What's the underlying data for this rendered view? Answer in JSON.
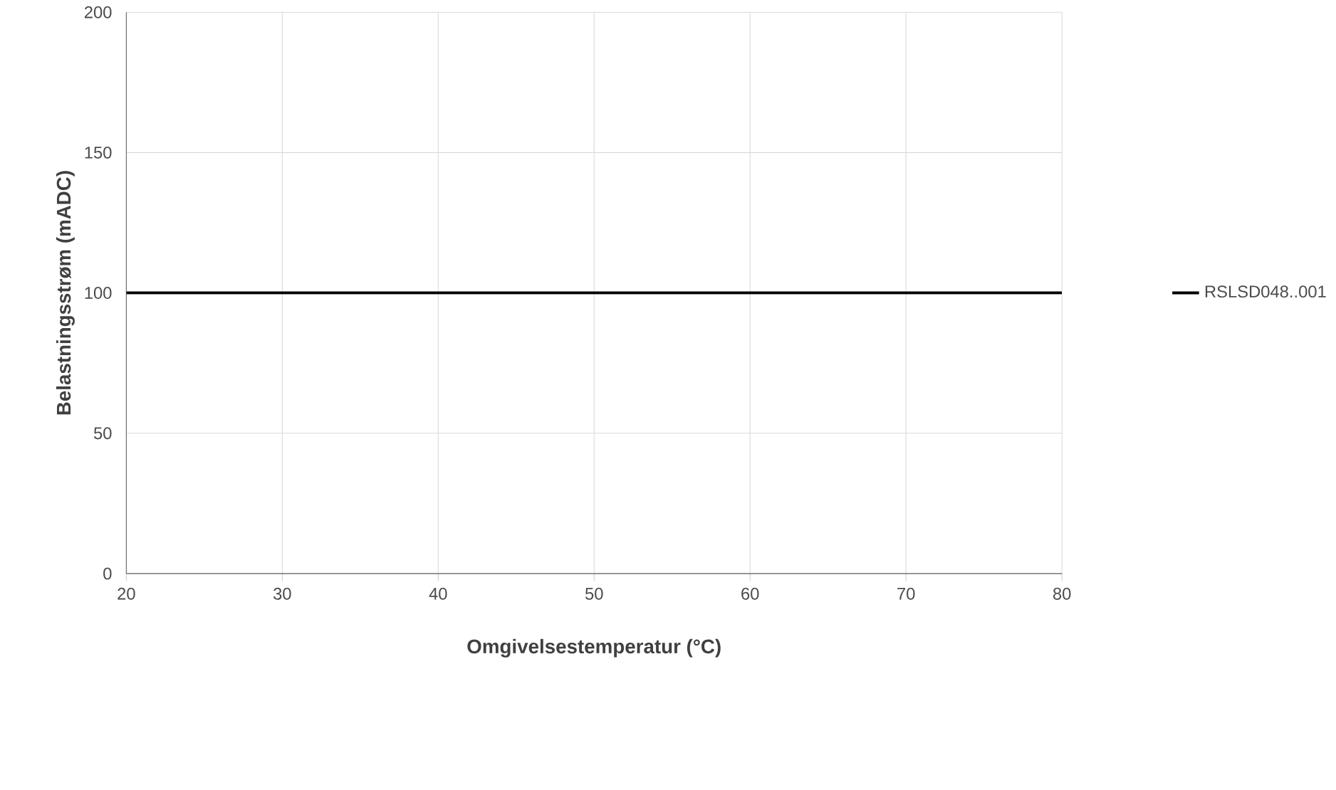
{
  "chart_data": {
    "type": "line",
    "xlabel": "Omgivelsestemperatur (°C)",
    "ylabel": "Belastningsstrøm (mADC)",
    "x": [
      20,
      80
    ],
    "series": [
      {
        "name": "RSLSD048..001",
        "color": "#000000",
        "values": [
          100,
          100
        ]
      }
    ],
    "xlim": [
      20,
      80
    ],
    "ylim": [
      0,
      200
    ],
    "xticks": [
      20,
      30,
      40,
      50,
      60,
      70,
      80
    ],
    "yticks": [
      0,
      50,
      100,
      150,
      200
    ],
    "grid": true,
    "legend": "right",
    "marker": "none",
    "line_style": "solid"
  }
}
